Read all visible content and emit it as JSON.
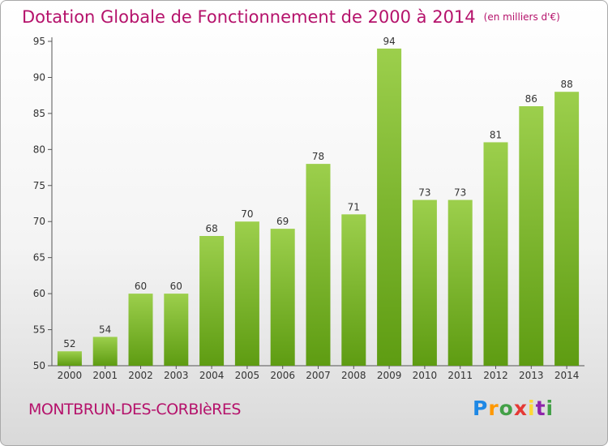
{
  "title": "Dotation Globale de Fonctionnement de 2000 à 2014",
  "subtitle": "(en milliers d'€)",
  "place": "MONTBRUN-DES-CORBIèRES",
  "logo": {
    "letters": [
      "P",
      "r",
      "o",
      "x",
      "i",
      "t",
      "i"
    ]
  },
  "colors": {
    "title": "#b5126b",
    "bar_light": "#9ccf4c",
    "bar_dark": "#5e9c12"
  },
  "chart_data": {
    "type": "bar",
    "title": "Dotation Globale de Fonctionnement de 2000 à 2014",
    "subtitle": "(en milliers d'€)",
    "xlabel": "",
    "ylabel": "",
    "categories": [
      "2000",
      "2001",
      "2002",
      "2003",
      "2004",
      "2005",
      "2006",
      "2007",
      "2008",
      "2009",
      "2010",
      "2011",
      "2012",
      "2013",
      "2014"
    ],
    "values": [
      52,
      54,
      60,
      60,
      68,
      70,
      69,
      78,
      71,
      94,
      73,
      73,
      81,
      86,
      88
    ],
    "ylim": [
      50,
      95
    ],
    "yticks": [
      50,
      55,
      60,
      65,
      70,
      75,
      80,
      85,
      90,
      95
    ],
    "grid": false,
    "legend": "none"
  }
}
